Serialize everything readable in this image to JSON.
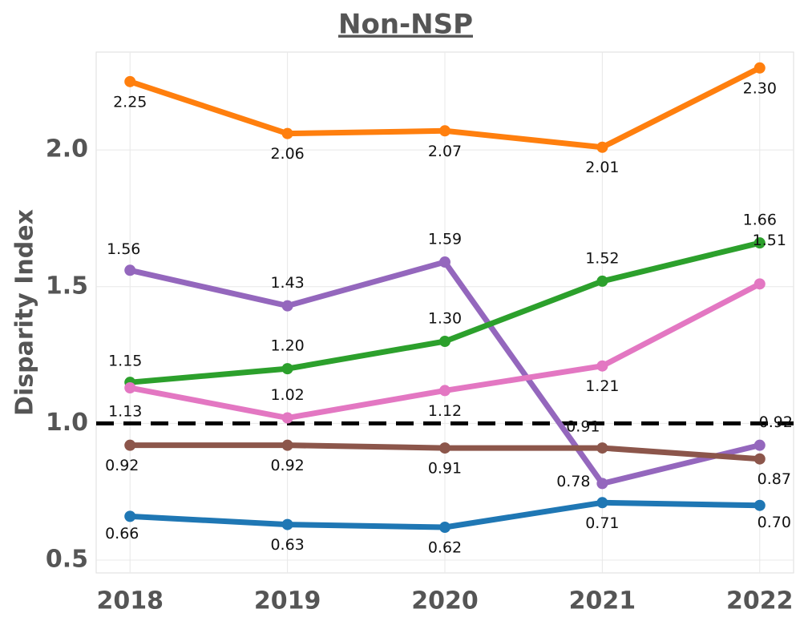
{
  "chart_data": {
    "type": "line",
    "title": "Non-NSP",
    "y_label": "Disparity Index",
    "x": [
      2018,
      2019,
      2020,
      2021,
      2022
    ],
    "xlim": [
      2017.785,
      2022.215
    ],
    "xticks": [
      2018,
      2019,
      2020,
      2021,
      2022
    ],
    "ylim": [
      0.453,
      2.358
    ],
    "yticks": [
      {
        "value": 0.5,
        "label": "0.5"
      },
      {
        "value": 1.0,
        "label": "1.0"
      },
      {
        "value": 1.5,
        "label": "1.5"
      },
      {
        "value": 2.0,
        "label": "2.0"
      }
    ],
    "grid": true,
    "reference_line": 1.0,
    "reference_color": "#000000",
    "series": [
      {
        "color": "#ff7f0e",
        "values": [
          2.25,
          2.06,
          2.07,
          2.01,
          2.3
        ],
        "value_labels": [
          "2.25",
          "2.06",
          "2.07",
          "2.01",
          "2.30"
        ]
      },
      {
        "color": "#9467bd",
        "values": [
          1.56,
          1.43,
          1.59,
          0.78,
          0.92
        ],
        "value_labels": [
          "1.56",
          "1.43",
          "1.59",
          "0.78",
          "0.92"
        ]
      },
      {
        "color": "#2ca02c",
        "values": [
          1.15,
          1.2,
          1.3,
          1.52,
          1.66
        ],
        "value_labels": [
          "1.15",
          "1.20",
          "1.30",
          "1.52",
          "1.66"
        ]
      },
      {
        "color": "#e377c2",
        "values": [
          1.13,
          1.02,
          1.12,
          1.21,
          1.51
        ],
        "value_labels": [
          "1.13",
          "1.02",
          "1.12",
          "1.21",
          "1.51"
        ]
      },
      {
        "color": "#8c564b",
        "values": [
          0.92,
          0.92,
          0.91,
          0.91,
          0.87
        ],
        "value_labels": [
          "0.92",
          "0.92",
          "0.91",
          "0.91",
          "0.87"
        ]
      },
      {
        "color": "#1f77b4",
        "values": [
          0.66,
          0.63,
          0.62,
          0.71,
          0.7
        ],
        "value_labels": [
          "0.66",
          "0.63",
          "0.62",
          "0.71",
          "0.70"
        ]
      }
    ]
  }
}
